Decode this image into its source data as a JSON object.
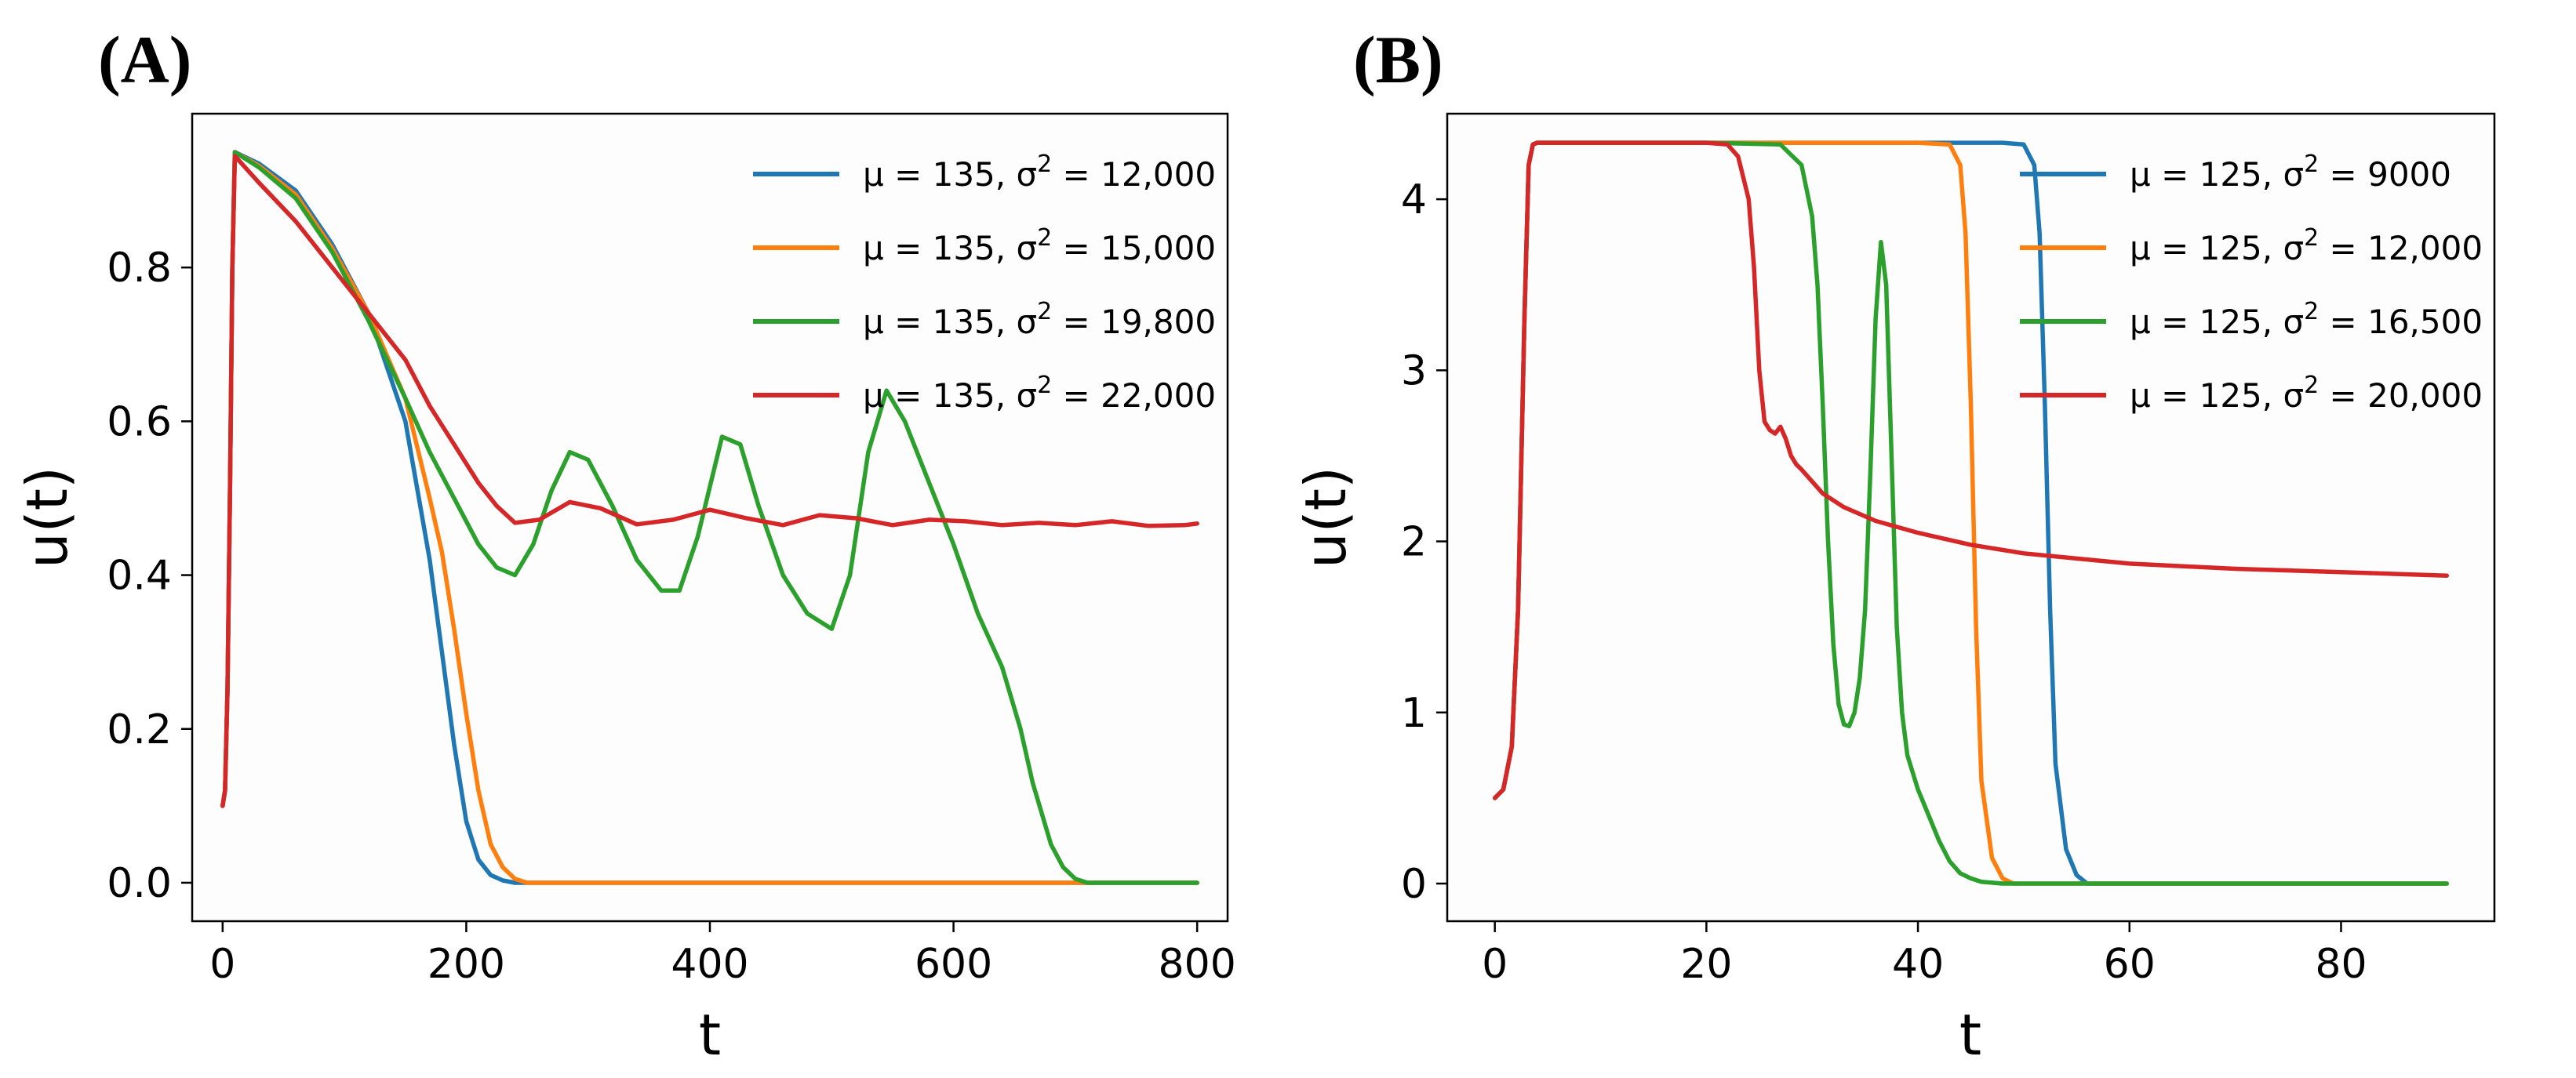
{
  "chart_data": [
    {
      "type": "line",
      "panel_label": "(A)",
      "xlabel": "t",
      "ylabel": "u(t)",
      "xlim": [
        -25,
        825
      ],
      "ylim": [
        -0.05,
        1.0
      ],
      "xticks": [
        0,
        200,
        400,
        600,
        800
      ],
      "xtick_labels": [
        "0",
        "200",
        "400",
        "600",
        "800"
      ],
      "yticks": [
        0.0,
        0.2,
        0.4,
        0.6,
        0.8
      ],
      "ytick_labels": [
        "0.0",
        "0.2",
        "0.4",
        "0.6",
        "0.8"
      ],
      "grid": false,
      "legend_position": "top-right",
      "series": [
        {
          "name": "μ = 135, σ² = 12,000",
          "legend_lead": "μ = 135, σ",
          "legend_tail": " = 12,000",
          "color": "#1f77b4",
          "x": [
            0,
            2,
            4,
            6,
            8,
            10,
            30,
            60,
            90,
            120,
            150,
            170,
            180,
            190,
            200,
            210,
            220,
            230,
            240,
            800
          ],
          "y": [
            0.1,
            0.12,
            0.25,
            0.5,
            0.8,
            0.95,
            0.935,
            0.9,
            0.83,
            0.74,
            0.6,
            0.42,
            0.3,
            0.18,
            0.08,
            0.03,
            0.01,
            0.003,
            0.0,
            0.0
          ]
        },
        {
          "name": "μ = 135, σ² = 15,000",
          "legend_lead": "μ = 135, σ",
          "legend_tail": " = 15,000",
          "color": "#ff7f0e",
          "x": [
            0,
            2,
            4,
            6,
            8,
            10,
            30,
            60,
            90,
            120,
            150,
            170,
            180,
            190,
            200,
            210,
            220,
            230,
            240,
            250,
            800
          ],
          "y": [
            0.1,
            0.12,
            0.25,
            0.5,
            0.8,
            0.95,
            0.932,
            0.895,
            0.825,
            0.74,
            0.63,
            0.5,
            0.43,
            0.33,
            0.22,
            0.12,
            0.05,
            0.02,
            0.005,
            0.0,
            0.0
          ]
        },
        {
          "name": "μ = 135, σ² = 19,800",
          "legend_lead": "μ = 135, σ",
          "legend_tail": " = 19,800",
          "color": "#2ca02c",
          "x": [
            0,
            2,
            4,
            6,
            8,
            10,
            30,
            60,
            90,
            120,
            150,
            170,
            190,
            210,
            225,
            240,
            255,
            270,
            285,
            300,
            320,
            340,
            360,
            375,
            390,
            410,
            425,
            440,
            460,
            480,
            500,
            515,
            530,
            545,
            560,
            580,
            600,
            620,
            640,
            655,
            665,
            680,
            690,
            700,
            710,
            800
          ],
          "y": [
            0.1,
            0.12,
            0.25,
            0.5,
            0.8,
            0.95,
            0.93,
            0.89,
            0.82,
            0.73,
            0.63,
            0.56,
            0.5,
            0.44,
            0.41,
            0.4,
            0.44,
            0.51,
            0.56,
            0.55,
            0.49,
            0.42,
            0.38,
            0.38,
            0.45,
            0.58,
            0.57,
            0.49,
            0.4,
            0.35,
            0.33,
            0.4,
            0.56,
            0.64,
            0.6,
            0.52,
            0.44,
            0.35,
            0.28,
            0.2,
            0.13,
            0.05,
            0.02,
            0.005,
            0.0,
            0.0
          ]
        },
        {
          "name": "μ = 135, σ² = 22,000",
          "legend_lead": "μ = 135, σ",
          "legend_tail": " = 22,000",
          "color": "#d62728",
          "x": [
            0,
            2,
            4,
            6,
            8,
            10,
            30,
            60,
            90,
            120,
            150,
            170,
            190,
            210,
            225,
            240,
            260,
            285,
            310,
            340,
            370,
            400,
            430,
            460,
            490,
            520,
            550,
            580,
            610,
            640,
            670,
            700,
            730,
            760,
            790,
            800
          ],
          "y": [
            0.1,
            0.12,
            0.25,
            0.5,
            0.8,
            0.945,
            0.91,
            0.86,
            0.8,
            0.74,
            0.68,
            0.62,
            0.57,
            0.52,
            0.49,
            0.468,
            0.472,
            0.495,
            0.487,
            0.466,
            0.472,
            0.485,
            0.474,
            0.465,
            0.478,
            0.474,
            0.465,
            0.472,
            0.47,
            0.465,
            0.468,
            0.465,
            0.47,
            0.464,
            0.465,
            0.467
          ]
        }
      ]
    },
    {
      "type": "line",
      "panel_label": "(B)",
      "xlabel": "t",
      "ylabel": "u(t)",
      "xlim": [
        -4.5,
        94.5
      ],
      "ylim": [
        -0.22,
        4.5
      ],
      "xticks": [
        0,
        20,
        40,
        60,
        80
      ],
      "xtick_labels": [
        "0",
        "20",
        "40",
        "60",
        "80"
      ],
      "yticks": [
        0,
        1,
        2,
        3,
        4
      ],
      "ytick_labels": [
        "0",
        "1",
        "2",
        "3",
        "4"
      ],
      "grid": false,
      "legend_position": "top-right",
      "series": [
        {
          "name": "μ = 125, σ² = 9000",
          "legend_lead": "μ = 125, σ",
          "legend_tail": " = 9000",
          "color": "#1f77b4",
          "x": [
            0,
            0.8,
            1.6,
            2.2,
            2.8,
            3.2,
            3.6,
            4,
            10,
            20,
            30,
            40,
            48,
            50,
            51,
            51.5,
            52,
            52.5,
            53,
            54,
            55,
            56,
            90
          ],
          "y": [
            0.5,
            0.55,
            0.8,
            1.6,
            3.3,
            4.2,
            4.32,
            4.33,
            4.33,
            4.33,
            4.33,
            4.33,
            4.33,
            4.32,
            4.2,
            3.8,
            2.8,
            1.6,
            0.7,
            0.2,
            0.05,
            0.0,
            0.0
          ]
        },
        {
          "name": "μ = 125, σ² = 12,000",
          "legend_lead": "μ = 125, σ",
          "legend_tail": " = 12,000",
          "color": "#ff7f0e",
          "x": [
            0,
            0.8,
            1.6,
            2.2,
            2.8,
            3.2,
            3.6,
            4,
            10,
            20,
            30,
            40,
            43,
            44,
            44.5,
            45,
            45.5,
            46,
            47,
            48,
            49,
            90
          ],
          "y": [
            0.5,
            0.55,
            0.8,
            1.6,
            3.3,
            4.2,
            4.32,
            4.33,
            4.33,
            4.33,
            4.33,
            4.33,
            4.32,
            4.2,
            3.8,
            2.8,
            1.5,
            0.6,
            0.15,
            0.03,
            0.0,
            0.0
          ]
        },
        {
          "name": "μ = 125, σ² = 16,500",
          "legend_lead": "μ = 125, σ",
          "legend_tail": " = 16,500",
          "color": "#2ca02c",
          "x": [
            0,
            0.8,
            1.6,
            2.2,
            2.8,
            3.2,
            3.6,
            4,
            10,
            20,
            27,
            29,
            30,
            30.5,
            31,
            31.5,
            32,
            32.5,
            33,
            33.5,
            34,
            34.5,
            35,
            35.5,
            36,
            36.5,
            37,
            37.5,
            38,
            38.5,
            39,
            40,
            41,
            42,
            43,
            44,
            45,
            46,
            48,
            50,
            90
          ],
          "y": [
            0.5,
            0.55,
            0.8,
            1.6,
            3.3,
            4.2,
            4.32,
            4.33,
            4.33,
            4.33,
            4.32,
            4.2,
            3.9,
            3.5,
            2.8,
            2.0,
            1.4,
            1.05,
            0.93,
            0.92,
            1.0,
            1.2,
            1.6,
            2.4,
            3.3,
            3.75,
            3.5,
            2.5,
            1.5,
            1.0,
            0.75,
            0.55,
            0.4,
            0.25,
            0.13,
            0.06,
            0.03,
            0.01,
            0.0,
            0.0,
            0.0
          ]
        },
        {
          "name": "μ = 125, σ² = 20,000",
          "legend_lead": "μ = 125, σ",
          "legend_tail": " = 20,000",
          "color": "#d62728",
          "x": [
            0,
            0.8,
            1.6,
            2.2,
            2.8,
            3.2,
            3.6,
            4,
            10,
            20,
            22,
            23,
            24,
            24.5,
            25,
            25.5,
            26,
            26.5,
            27,
            27.5,
            28,
            28.5,
            29,
            30,
            31,
            33,
            36,
            40,
            45,
            50,
            55,
            60,
            70,
            80,
            90
          ],
          "y": [
            0.5,
            0.55,
            0.8,
            1.6,
            3.3,
            4.2,
            4.32,
            4.33,
            4.33,
            4.33,
            4.32,
            4.25,
            4.0,
            3.6,
            3.0,
            2.7,
            2.65,
            2.63,
            2.67,
            2.6,
            2.5,
            2.45,
            2.42,
            2.35,
            2.28,
            2.2,
            2.12,
            2.05,
            1.98,
            1.93,
            1.9,
            1.87,
            1.84,
            1.82,
            1.8
          ]
        }
      ]
    }
  ]
}
